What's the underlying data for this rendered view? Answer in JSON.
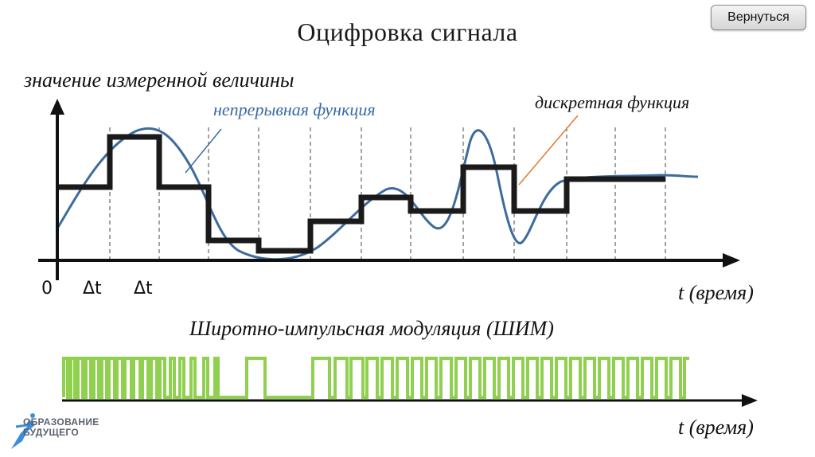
{
  "header": {
    "title": "Оцифровка сигнала",
    "back_button": "Вернуться"
  },
  "diagram": {
    "y_axis_label": "значение измеренной величины",
    "continuous_label": "непрерывная функция",
    "discrete_label": "дискретная функция",
    "time_label": "t (время)",
    "tick_origin": "0",
    "tick_dt_1": "Δt",
    "tick_dt_2": "Δt",
    "pwm_title": "Широтно-импульсная модуляция (ШИМ)",
    "pwm_time_label": "t (время)",
    "colors": {
      "continuous": "#3d6b9e",
      "discrete": "#1a1a1a",
      "pwm": "#8fd14f",
      "pointer_continuous": "#3d6b9e",
      "pointer_discrete": "#e07a30"
    }
  },
  "logo": {
    "line1": "ОБРАЗОВАНИЕ",
    "line2": "БУДУЩЕГО"
  }
}
